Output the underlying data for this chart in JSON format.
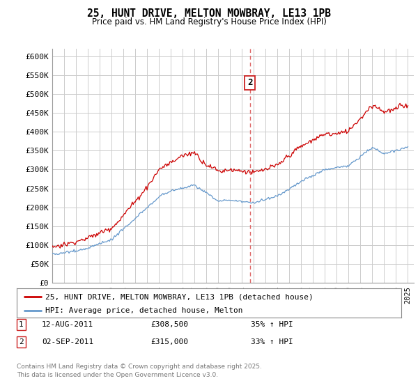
{
  "title": "25, HUNT DRIVE, MELTON MOWBRAY, LE13 1PB",
  "subtitle": "Price paid vs. HM Land Registry's House Price Index (HPI)",
  "legend_line1": "25, HUNT DRIVE, MELTON MOWBRAY, LE13 1PB (detached house)",
  "legend_line2": "HPI: Average price, detached house, Melton",
  "transaction1": {
    "label": "1",
    "date": "12-AUG-2011",
    "price": "£308,500",
    "hpi": "35% ↑ HPI",
    "year": 2011.62
  },
  "transaction2": {
    "label": "2",
    "date": "02-SEP-2011",
    "price": "£315,000",
    "hpi": "33% ↑ HPI",
    "year": 2011.67
  },
  "footer": "Contains HM Land Registry data © Crown copyright and database right 2025.\nThis data is licensed under the Open Government Licence v3.0.",
  "red_color": "#cc0000",
  "blue_color": "#6699cc",
  "dashed_color": "#dd6666",
  "bg_color": "#ffffff",
  "grid_color": "#cccccc",
  "ylim": [
    0,
    620000
  ],
  "xlim_start": 1995,
  "xlim_end": 2025.5,
  "ytick_values": [
    0,
    50000,
    100000,
    150000,
    200000,
    250000,
    300000,
    350000,
    400000,
    450000,
    500000,
    550000,
    600000
  ],
  "ytick_labels": [
    "£0",
    "£50K",
    "£100K",
    "£150K",
    "£200K",
    "£250K",
    "£300K",
    "£350K",
    "£400K",
    "£450K",
    "£500K",
    "£550K",
    "£600K"
  ]
}
